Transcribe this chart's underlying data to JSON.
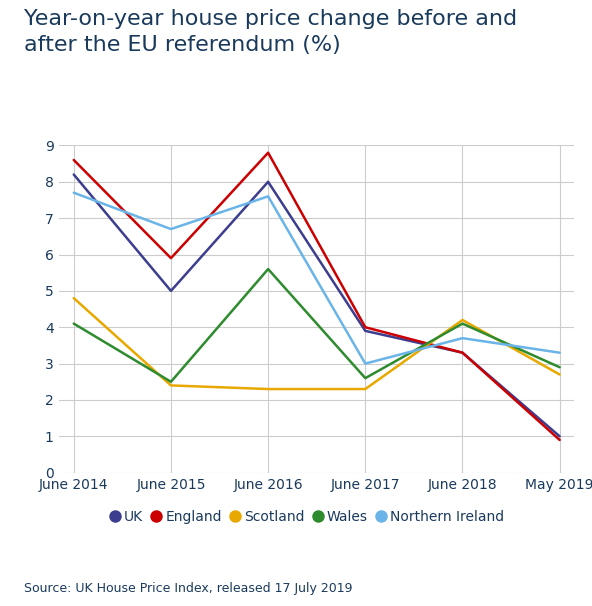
{
  "title": "Year-on-year house price change before and\nafter the EU referendum (%)",
  "source": "Source: UK House Price Index, released 17 July 2019",
  "x_labels": [
    "June 2014",
    "June 2015",
    "June 2016",
    "June 2017",
    "June 2018",
    "May 2019"
  ],
  "series": [
    {
      "name": "UK",
      "color": "#3d3d8f",
      "values": [
        8.2,
        5.0,
        8.0,
        3.9,
        3.3,
        1.0
      ]
    },
    {
      "name": "England",
      "color": "#cc0000",
      "values": [
        8.6,
        5.9,
        8.8,
        4.0,
        3.3,
        0.9
      ]
    },
    {
      "name": "Scotland",
      "color": "#e8a800",
      "values": [
        4.8,
        2.4,
        2.3,
        2.3,
        4.2,
        2.7
      ]
    },
    {
      "name": "Wales",
      "color": "#2e8b2e",
      "values": [
        4.1,
        2.5,
        5.6,
        2.6,
        4.1,
        2.9
      ]
    },
    {
      "name": "Northern Ireland",
      "color": "#6ab4e8",
      "values": [
        7.7,
        6.7,
        7.6,
        3.0,
        3.7,
        3.3
      ]
    }
  ],
  "ylim": [
    0,
    9
  ],
  "yticks": [
    0,
    1,
    2,
    3,
    4,
    5,
    6,
    7,
    8,
    9
  ],
  "background_color": "#ffffff",
  "grid_color": "#cccccc",
  "title_color": "#1a3a5c",
  "source_color": "#1a3a5c",
  "title_fontsize": 16,
  "source_fontsize": 9,
  "legend_fontsize": 10,
  "tick_fontsize": 10
}
